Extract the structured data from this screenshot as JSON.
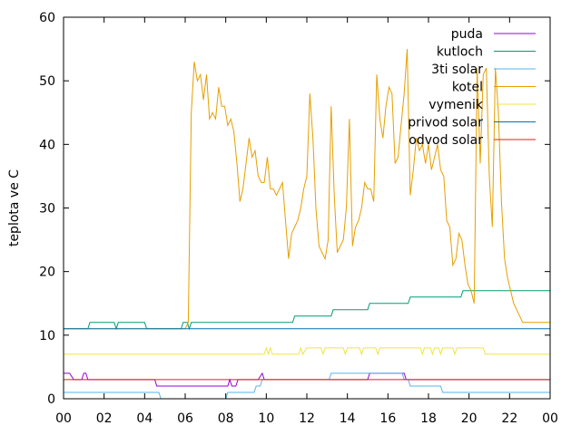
{
  "chart_data": {
    "type": "line",
    "title": "",
    "xlabel": "",
    "ylabel": "teplota ve C",
    "xlim": [
      0,
      24
    ],
    "ylim": [
      0,
      60
    ],
    "x_tick_labels": [
      "00",
      "02",
      "04",
      "06",
      "08",
      "10",
      "12",
      "14",
      "16",
      "18",
      "20",
      "22",
      "00"
    ],
    "y_tick_labels": [
      "0",
      "10",
      "20",
      "30",
      "40",
      "50",
      "60"
    ],
    "grid": false,
    "legend_position": "top-right",
    "series": [
      {
        "name": "puda",
        "color": "#9400d3",
        "points": [
          [
            0,
            4
          ],
          [
            0.3,
            4
          ],
          [
            0.5,
            3
          ],
          [
            0.9,
            3
          ],
          [
            1.0,
            4
          ],
          [
            1.1,
            4
          ],
          [
            1.2,
            3
          ],
          [
            4.5,
            3
          ],
          [
            4.6,
            2
          ],
          [
            8.1,
            2
          ],
          [
            8.2,
            3
          ],
          [
            8.3,
            2
          ],
          [
            8.5,
            2
          ],
          [
            8.6,
            3
          ],
          [
            9.6,
            3
          ],
          [
            9.8,
            4
          ],
          [
            9.9,
            3
          ],
          [
            15.0,
            3
          ],
          [
            15.1,
            4
          ],
          [
            16.8,
            4
          ],
          [
            16.9,
            3
          ],
          [
            24,
            3
          ]
        ]
      },
      {
        "name": "kutloch",
        "color": "#009e73",
        "points": [
          [
            0,
            11
          ],
          [
            1.2,
            11
          ],
          [
            1.3,
            12
          ],
          [
            2.5,
            12
          ],
          [
            2.6,
            11
          ],
          [
            2.7,
            12
          ],
          [
            4.0,
            12
          ],
          [
            4.1,
            11
          ],
          [
            5.8,
            11
          ],
          [
            5.9,
            12
          ],
          [
            6.1,
            12
          ],
          [
            6.2,
            11
          ],
          [
            6.3,
            12
          ],
          [
            11.3,
            12
          ],
          [
            11.4,
            13
          ],
          [
            13.2,
            13
          ],
          [
            13.3,
            14
          ],
          [
            15.0,
            14
          ],
          [
            15.1,
            15
          ],
          [
            17.0,
            15
          ],
          [
            17.1,
            16
          ],
          [
            19.6,
            16
          ],
          [
            19.7,
            17
          ],
          [
            24,
            17
          ]
        ]
      },
      {
        "name": "3ti solar",
        "color": "#56b4e9",
        "points": [
          [
            0,
            1
          ],
          [
            4.7,
            1
          ],
          [
            4.8,
            0
          ],
          [
            8.0,
            0
          ],
          [
            8.1,
            1
          ],
          [
            9.4,
            1
          ],
          [
            9.5,
            2
          ],
          [
            9.7,
            2
          ],
          [
            9.8,
            3
          ],
          [
            13.1,
            3
          ],
          [
            13.2,
            4
          ],
          [
            16.7,
            4
          ],
          [
            16.8,
            3
          ],
          [
            17.0,
            3
          ],
          [
            17.1,
            2
          ],
          [
            18.6,
            2
          ],
          [
            18.7,
            1
          ],
          [
            24,
            1
          ]
        ]
      },
      {
        "name": "kotel",
        "color": "#e69f00",
        "points": [
          [
            0,
            11
          ],
          [
            6.0,
            11
          ],
          [
            6.15,
            12
          ],
          [
            6.3,
            45
          ],
          [
            6.45,
            53
          ],
          [
            6.6,
            50
          ],
          [
            6.75,
            51
          ],
          [
            6.9,
            47
          ],
          [
            7.05,
            51
          ],
          [
            7.2,
            44
          ],
          [
            7.35,
            45
          ],
          [
            7.5,
            44
          ],
          [
            7.65,
            49
          ],
          [
            7.8,
            46
          ],
          [
            7.95,
            46
          ],
          [
            8.1,
            43
          ],
          [
            8.25,
            44
          ],
          [
            8.4,
            42
          ],
          [
            8.55,
            37
          ],
          [
            8.7,
            31
          ],
          [
            8.85,
            33
          ],
          [
            9.0,
            37
          ],
          [
            9.15,
            41
          ],
          [
            9.3,
            38
          ],
          [
            9.45,
            39
          ],
          [
            9.6,
            35
          ],
          [
            9.75,
            34
          ],
          [
            9.9,
            34
          ],
          [
            10.05,
            38
          ],
          [
            10.2,
            33
          ],
          [
            10.35,
            33
          ],
          [
            10.5,
            32
          ],
          [
            10.65,
            33
          ],
          [
            10.8,
            34
          ],
          [
            10.95,
            28
          ],
          [
            11.1,
            22
          ],
          [
            11.25,
            26
          ],
          [
            11.4,
            27
          ],
          [
            11.55,
            28
          ],
          [
            11.7,
            30
          ],
          [
            11.85,
            33
          ],
          [
            12.0,
            35
          ],
          [
            12.15,
            48
          ],
          [
            12.3,
            41
          ],
          [
            12.45,
            30
          ],
          [
            12.6,
            24
          ],
          [
            12.75,
            23
          ],
          [
            12.9,
            22
          ],
          [
            13.05,
            25
          ],
          [
            13.2,
            46
          ],
          [
            13.35,
            32
          ],
          [
            13.5,
            23
          ],
          [
            13.65,
            24
          ],
          [
            13.8,
            25
          ],
          [
            13.95,
            30
          ],
          [
            14.1,
            44
          ],
          [
            14.25,
            24
          ],
          [
            14.4,
            27
          ],
          [
            14.55,
            28
          ],
          [
            14.7,
            30
          ],
          [
            14.85,
            34
          ],
          [
            15.0,
            33
          ],
          [
            15.15,
            33
          ],
          [
            15.3,
            31
          ],
          [
            15.45,
            51
          ],
          [
            15.6,
            44
          ],
          [
            15.75,
            41
          ],
          [
            15.9,
            46
          ],
          [
            16.05,
            49
          ],
          [
            16.2,
            48
          ],
          [
            16.35,
            37
          ],
          [
            16.5,
            38
          ],
          [
            16.65,
            43
          ],
          [
            16.8,
            48
          ],
          [
            16.95,
            55
          ],
          [
            17.1,
            32
          ],
          [
            17.25,
            36
          ],
          [
            17.4,
            41
          ],
          [
            17.55,
            39
          ],
          [
            17.7,
            40
          ],
          [
            17.85,
            37
          ],
          [
            18.0,
            40
          ],
          [
            18.15,
            36
          ],
          [
            18.3,
            38
          ],
          [
            18.45,
            40
          ],
          [
            18.6,
            36
          ],
          [
            18.75,
            35
          ],
          [
            18.9,
            28
          ],
          [
            19.05,
            27
          ],
          [
            19.2,
            21
          ],
          [
            19.35,
            22
          ],
          [
            19.5,
            26
          ],
          [
            19.65,
            25
          ],
          [
            19.8,
            21
          ],
          [
            19.95,
            18
          ],
          [
            20.1,
            17
          ],
          [
            20.25,
            15
          ],
          [
            20.4,
            52
          ],
          [
            20.55,
            37
          ],
          [
            20.7,
            51
          ],
          [
            20.85,
            52
          ],
          [
            21.0,
            35
          ],
          [
            21.15,
            27
          ],
          [
            21.3,
            52
          ],
          [
            21.45,
            45
          ],
          [
            21.6,
            31
          ],
          [
            21.75,
            22
          ],
          [
            21.9,
            19
          ],
          [
            22.05,
            17
          ],
          [
            22.2,
            15
          ],
          [
            22.35,
            14
          ],
          [
            22.5,
            13
          ],
          [
            22.65,
            12
          ],
          [
            24,
            12
          ]
        ]
      },
      {
        "name": "vymenik",
        "color": "#f0e442",
        "points": [
          [
            0,
            7
          ],
          [
            9.9,
            7
          ],
          [
            10.0,
            8
          ],
          [
            10.1,
            7
          ],
          [
            10.2,
            8
          ],
          [
            10.3,
            7
          ],
          [
            11.6,
            7
          ],
          [
            11.7,
            8
          ],
          [
            11.8,
            7
          ],
          [
            12.0,
            8
          ],
          [
            12.7,
            8
          ],
          [
            12.8,
            7
          ],
          [
            12.9,
            8
          ],
          [
            13.8,
            8
          ],
          [
            13.9,
            7
          ],
          [
            14.0,
            8
          ],
          [
            14.6,
            8
          ],
          [
            14.7,
            7
          ],
          [
            14.8,
            8
          ],
          [
            15.4,
            8
          ],
          [
            15.5,
            7
          ],
          [
            15.6,
            8
          ],
          [
            17.6,
            8
          ],
          [
            17.7,
            7
          ],
          [
            17.8,
            8
          ],
          [
            18.1,
            8
          ],
          [
            18.2,
            7
          ],
          [
            18.3,
            8
          ],
          [
            18.5,
            8
          ],
          [
            18.6,
            7
          ],
          [
            18.7,
            8
          ],
          [
            19.2,
            8
          ],
          [
            19.3,
            7
          ],
          [
            19.4,
            8
          ],
          [
            20.7,
            8
          ],
          [
            20.8,
            7
          ],
          [
            24,
            7
          ]
        ]
      },
      {
        "name": "privod solar",
        "color": "#0072b2",
        "points": [
          [
            0,
            11
          ],
          [
            24,
            11
          ]
        ]
      },
      {
        "name": "odvod solar",
        "color": "#e51e10",
        "points": [
          [
            0,
            3
          ],
          [
            24,
            3
          ]
        ]
      }
    ]
  }
}
